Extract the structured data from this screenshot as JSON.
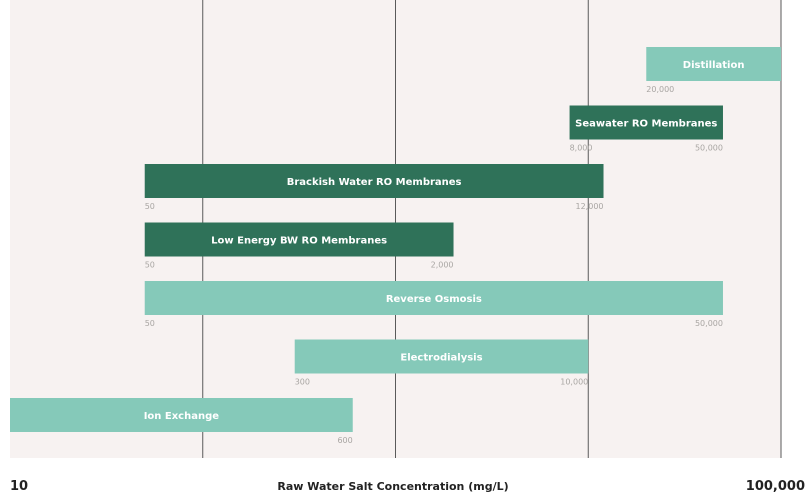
{
  "chart_data": {
    "type": "bar",
    "orientation": "horizontal-range",
    "xscale": "log",
    "xlim": [
      10,
      100000
    ],
    "xlabel": "Raw Water Salt Concentration (mg/L)",
    "x_min_label": "10",
    "x_max_label": "100,000",
    "colors": {
      "light": "#85c9b9",
      "dark": "#2f7259",
      "plot_bg": "#f7f2f1",
      "grid": "#5a5a5a"
    },
    "series": [
      {
        "name": "Distillation",
        "start": 20000,
        "end": 100000,
        "start_label": "20,000",
        "end_label": "",
        "color": "light"
      },
      {
        "name": "Seawater RO Membranes",
        "start": 8000,
        "end": 50000,
        "start_label": "8,000",
        "end_label": "50,000",
        "color": "dark"
      },
      {
        "name": "Brackish Water RO Membranes",
        "start": 50,
        "end": 12000,
        "start_label": "50",
        "end_label": "12,000",
        "color": "dark"
      },
      {
        "name": "Low Energy BW RO Membranes",
        "start": 50,
        "end": 2000,
        "start_label": "50",
        "end_label": "2,000",
        "color": "dark"
      },
      {
        "name": "Reverse Osmosis",
        "start": 50,
        "end": 50000,
        "start_label": "50",
        "end_label": "50,000",
        "color": "light"
      },
      {
        "name": "Electrodialysis",
        "start": 300,
        "end": 10000,
        "start_label": "300",
        "end_label": "10,000",
        "color": "light"
      },
      {
        "name": "Ion Exchange",
        "start": 10,
        "end": 600,
        "start_label": "",
        "end_label": "600",
        "color": "light"
      }
    ]
  }
}
